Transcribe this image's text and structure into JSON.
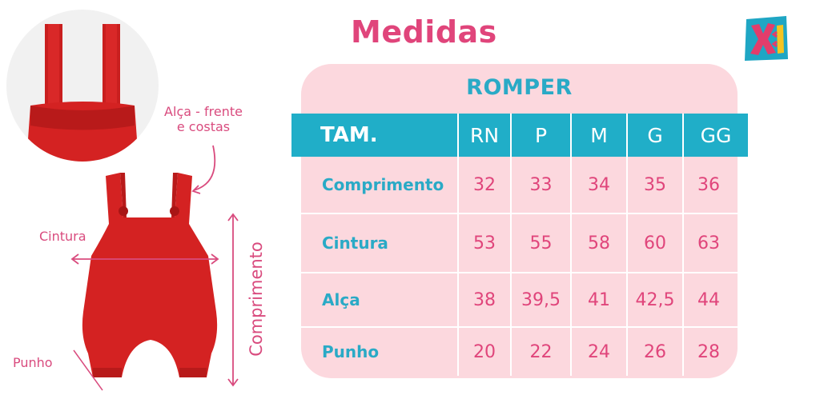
{
  "title": "Medidas",
  "logo": {
    "text": "XI",
    "colors": {
      "bg": "#1fa6c4",
      "x": "#e23d6b",
      "i": "#f4c421"
    }
  },
  "annotations": {
    "alca": "Alça - frente",
    "alca2": "e costas",
    "cintura": "Cintura",
    "punho": "Punho",
    "comprimento": "Comprimento"
  },
  "table": {
    "title": "ROMPER",
    "header": [
      "TAM.",
      "RN",
      "P",
      "M",
      "G",
      "GG"
    ],
    "rows": [
      {
        "label": "Comprimento",
        "values": [
          "32",
          "33",
          "34",
          "35",
          "36"
        ]
      },
      {
        "label": "Cintura",
        "values": [
          "53",
          "55",
          "58",
          "60",
          "63"
        ]
      },
      {
        "label": "Alça",
        "values": [
          "38",
          "39,5",
          "41",
          "42,5",
          "44"
        ]
      },
      {
        "label": "Punho",
        "values": [
          "20",
          "22",
          "24",
          "26",
          "28"
        ]
      }
    ]
  },
  "colors": {
    "pink": "#e0457b",
    "teal": "#20aec8",
    "card": "#fcd8de",
    "garment": "#d42222"
  }
}
